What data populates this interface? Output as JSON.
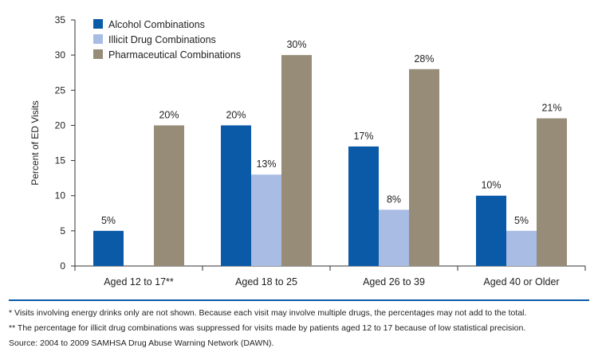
{
  "chart_data": {
    "type": "bar",
    "title": "",
    "xlabel": "",
    "ylabel": "Percent of ED Visits",
    "ylim": [
      0,
      35
    ],
    "yticks": [
      0,
      5,
      10,
      15,
      20,
      25,
      30,
      35
    ],
    "categories": [
      "Aged 12 to 17**",
      "Aged 18 to 25",
      "Aged 26 to 39",
      "Aged 40 or Older"
    ],
    "series": [
      {
        "name": "Alcohol Combinations",
        "color": "#0b5aa8",
        "values": [
          5,
          20,
          17,
          10
        ],
        "labels": [
          "5%",
          "20%",
          "17%",
          "10%"
        ]
      },
      {
        "name": "Illicit Drug Combinations",
        "color": "#a9bce3",
        "values": [
          null,
          13,
          8,
          5
        ],
        "labels": [
          "",
          "13%",
          "8%",
          "5%"
        ]
      },
      {
        "name": "Pharmaceutical Combinations",
        "color": "#978c78",
        "values": [
          20,
          30,
          28,
          21
        ],
        "labels": [
          "20%",
          "30%",
          "28%",
          "21%"
        ]
      }
    ],
    "legend_position": "top-left"
  },
  "rule_color": "#0b5aa8",
  "footnotes": {
    "note1": "* Visits involving energy drinks only are not shown. Because each visit may involve multiple drugs, the percentages may not add to the total.",
    "note2": "** The percentage for illicit drug combinations was suppressed for visits made by patients aged 12 to 17 because of low statistical precision.",
    "source": "Source: 2004 to 2009 SAMHSA Drug Abuse Warning Network (DAWN)."
  }
}
